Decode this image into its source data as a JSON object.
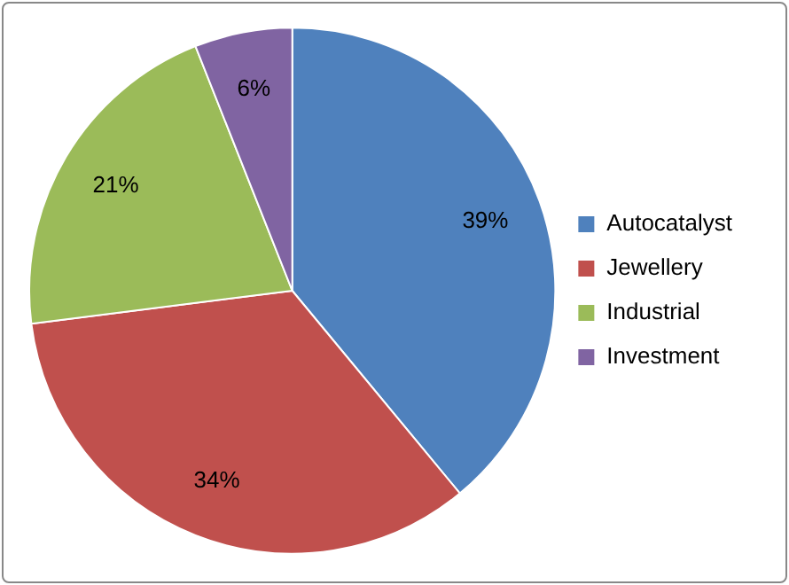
{
  "chart_data": {
    "type": "pie",
    "categories": [
      "Autocatalyst",
      "Jewellery",
      "Industrial",
      "Investment"
    ],
    "values": [
      39,
      34,
      21,
      6
    ],
    "colors": [
      "#4f81bd",
      "#c0504d",
      "#9bbb59",
      "#8064a2"
    ],
    "value_labels": [
      "39%",
      "34%",
      "21%",
      "6%"
    ],
    "legend": "right"
  }
}
